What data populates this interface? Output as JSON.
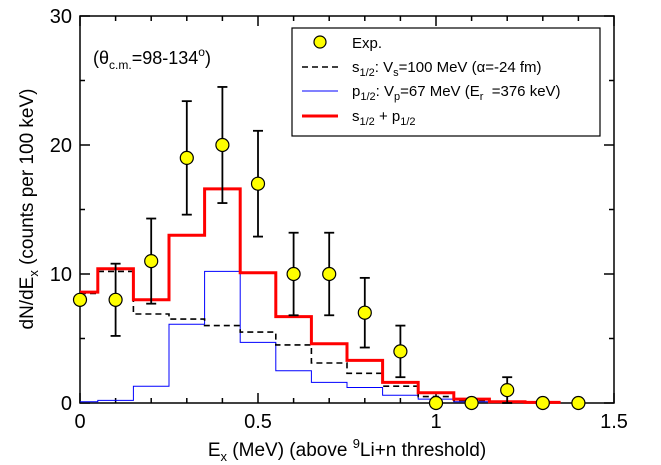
{
  "chart_data": {
    "type": "line",
    "xlabel": "E_x (MeV) (above 9Li+n threshold)",
    "ylabel": "dN/dE_x (counts per 100 keV)",
    "xlim": [
      0,
      1.5
    ],
    "ylim": [
      0,
      30
    ],
    "x_ticks": [
      "0",
      "0.5",
      "1",
      "1.5"
    ],
    "y_ticks": [
      "0",
      "10",
      "20",
      "30"
    ],
    "grid": false,
    "legend_position": "top-right",
    "annotation": "(θ c.m. =98-134 o )",
    "experimental": {
      "name": "Exp.",
      "color": "#ffff00",
      "points": [
        {
          "x": 0.0,
          "y": 8,
          "err": 0
        },
        {
          "x": 0.1,
          "y": 8,
          "err": 2.8
        },
        {
          "x": 0.2,
          "y": 11,
          "err": 3.3
        },
        {
          "x": 0.3,
          "y": 19,
          "err": 4.4
        },
        {
          "x": 0.4,
          "y": 20,
          "err": 4.5
        },
        {
          "x": 0.5,
          "y": 17,
          "err": 4.1
        },
        {
          "x": 0.6,
          "y": 10,
          "err": 3.2
        },
        {
          "x": 0.7,
          "y": 10,
          "err": 3.2
        },
        {
          "x": 0.8,
          "y": 7,
          "err": 2.7
        },
        {
          "x": 0.9,
          "y": 4,
          "err": 2.0
        },
        {
          "x": 1.0,
          "y": 0,
          "err": 0
        },
        {
          "x": 1.1,
          "y": 0,
          "err": 0
        },
        {
          "x": 1.2,
          "y": 1,
          "err": 1.0
        },
        {
          "x": 1.3,
          "y": 0,
          "err": 0
        },
        {
          "x": 1.4,
          "y": 0,
          "err": 0
        }
      ]
    },
    "series": [
      {
        "name": "s1/2: Vs=100 MeV (α=-24 fm)",
        "color": "#000000",
        "style": "dashed",
        "x": [
          0.0,
          0.05,
          0.05,
          0.15,
          0.15,
          0.25,
          0.25,
          0.35,
          0.35,
          0.45,
          0.45,
          0.55,
          0.55,
          0.65,
          0.65,
          0.75,
          0.75,
          0.85,
          0.85,
          0.95,
          0.95,
          1.05,
          1.05,
          1.15,
          1.15,
          1.25,
          1.25,
          1.35
        ],
        "y": [
          8.5,
          8.5,
          10.2,
          10.2,
          6.9,
          6.9,
          6.5,
          6.5,
          6.0,
          6.0,
          5.5,
          5.5,
          4.5,
          4.5,
          3.1,
          3.1,
          2.3,
          2.3,
          1.3,
          1.3,
          0.5,
          0.5,
          0.2,
          0.2,
          0.1,
          0.1,
          0.05,
          0.05
        ]
      },
      {
        "name": "p1/2: Vp=67 MeV (Er =376 keV)",
        "color": "#0000ff",
        "style": "solid",
        "x": [
          0.0,
          0.05,
          0.05,
          0.15,
          0.15,
          0.25,
          0.25,
          0.35,
          0.35,
          0.45,
          0.45,
          0.55,
          0.55,
          0.65,
          0.65,
          0.75,
          0.75,
          0.85,
          0.85,
          0.95,
          0.95,
          1.05,
          1.05,
          1.15,
          1.15,
          1.25,
          1.25,
          1.35
        ],
        "y": [
          0.1,
          0.1,
          0.2,
          0.2,
          1.3,
          1.3,
          6.1,
          6.1,
          10.2,
          10.2,
          4.7,
          4.7,
          2.5,
          2.5,
          1.6,
          1.6,
          1.2,
          1.2,
          0.6,
          0.6,
          0.3,
          0.3,
          0.1,
          0.1,
          0.05,
          0.05,
          0.0,
          0.0
        ]
      },
      {
        "name": "s1/2 + p1/2",
        "color": "#ff0000",
        "style": "solid",
        "x": [
          0.0,
          0.05,
          0.05,
          0.15,
          0.15,
          0.25,
          0.25,
          0.35,
          0.35,
          0.45,
          0.45,
          0.55,
          0.55,
          0.65,
          0.65,
          0.75,
          0.75,
          0.85,
          0.85,
          0.95,
          0.95,
          1.05,
          1.05,
          1.15,
          1.15,
          1.25,
          1.25,
          1.35
        ],
        "y": [
          8.6,
          8.6,
          10.4,
          10.4,
          8.0,
          8.0,
          13.0,
          13.0,
          16.6,
          16.6,
          10.1,
          10.1,
          6.7,
          6.7,
          4.6,
          4.6,
          3.3,
          3.3,
          1.6,
          1.6,
          0.8,
          0.8,
          0.3,
          0.3,
          0.1,
          0.1,
          0.05,
          0.05
        ]
      }
    ],
    "legend": {
      "exp": "Exp.",
      "s_head": "s",
      "s_sub": "1/2",
      "s_mid": ": V",
      "s_sub2": "s",
      "s_tail": "=100 MeV (α=-24 fm)",
      "p_head": "p",
      "p_sub": "1/2",
      "p_mid": ": V",
      "p_sub2": "p",
      "p_tail": "=67 MeV (E",
      "p_sub3": "r",
      "p_tail2": "  =376 keV)",
      "sum_a": "s",
      "sum_sub_a": "1/2",
      "sum_mid": " + p",
      "sum_sub_b": "1/2"
    },
    "ylabel_parts": {
      "a": "dN/dE",
      "sub": "x",
      "b": " (counts per 100 keV)"
    },
    "xlabel_parts": {
      "a": "E",
      "sub": "x",
      "b": " (MeV) (above ",
      "sup": "9",
      "c": "Li+n threshold)"
    },
    "annotation_parts": {
      "open": "(θ",
      "sub": "c.m.",
      "mid": "=98-134",
      "sup": "o",
      "close": ")"
    }
  }
}
